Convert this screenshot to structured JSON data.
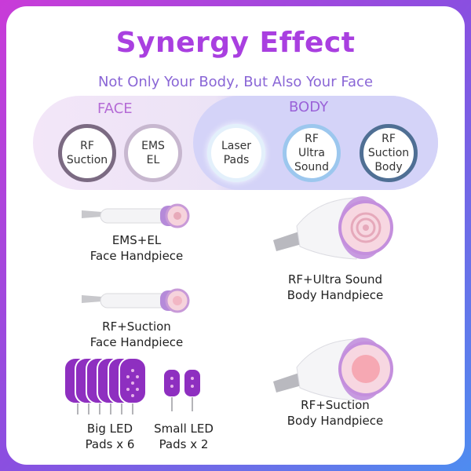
{
  "header": {
    "title": "Synergy Effect",
    "subtitle": "Not Only Your Body, But Also Your Face"
  },
  "groups": {
    "face_label": "FACE",
    "body_label": "BODY"
  },
  "modes": [
    {
      "label": "RF\nSuction"
    },
    {
      "label": "EMS\nEL"
    },
    {
      "label": "Laser\nPads"
    },
    {
      "label": "RF\nUltra\nSound"
    },
    {
      "label": "RF\nSuction\nBody"
    }
  ],
  "items": {
    "ems_el": "EMS+EL\nFace Handpiece",
    "rf_ultrasound": "RF+Ultra Sound\nBody Handpiece",
    "rf_suction_face": "RF+Suction\nFace Handpiece",
    "rf_suction_body": "RF+Suction\nBody Handpiece",
    "big_led": "Big LED\nPads x 6",
    "small_led": "Small LED\nPads x 2"
  },
  "colors": {
    "title": "#a93fe0",
    "accent_purple": "#9b59d8",
    "frame_start": "#c93bd8",
    "frame_end": "#4e8cf0"
  }
}
